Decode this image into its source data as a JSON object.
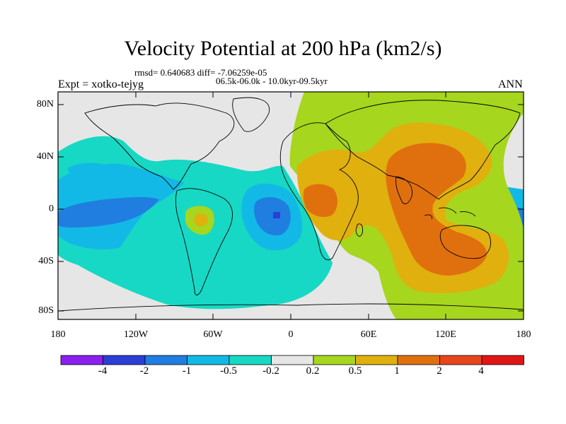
{
  "title": "Velocity Potential at 200 hPa (km2/s)",
  "stats_line": "rmsd= 0.640683 diff= -7.06259e-05",
  "period_line": "06.5k-06.0k - 10.0kyr-09.5kyr",
  "experiment": "Expt = xotko-tejyg",
  "season": "ANN",
  "y_axis_labels": [
    "80N",
    "40N",
    "0",
    "40S",
    "80S"
  ],
  "x_axis_labels": [
    "180",
    "120W",
    "60W",
    "0",
    "60E",
    "120E",
    "180"
  ],
  "colorbar": {
    "labels": [
      "-4",
      "-2",
      "-1",
      "-0.5",
      "-0.2",
      "0.2",
      "0.5",
      "1",
      "2",
      "4"
    ],
    "colors": [
      "#8b1ff0",
      "#2a3fd6",
      "#1f7ee0",
      "#12b9e6",
      "#17d8c4",
      "#e6e6e6",
      "#a6d61e",
      "#e0b00e",
      "#e0700e",
      "#e8461a",
      "#e01616"
    ]
  },
  "colors": {
    "background_land": "#e6e6e6",
    "coastline": "#000000"
  }
}
